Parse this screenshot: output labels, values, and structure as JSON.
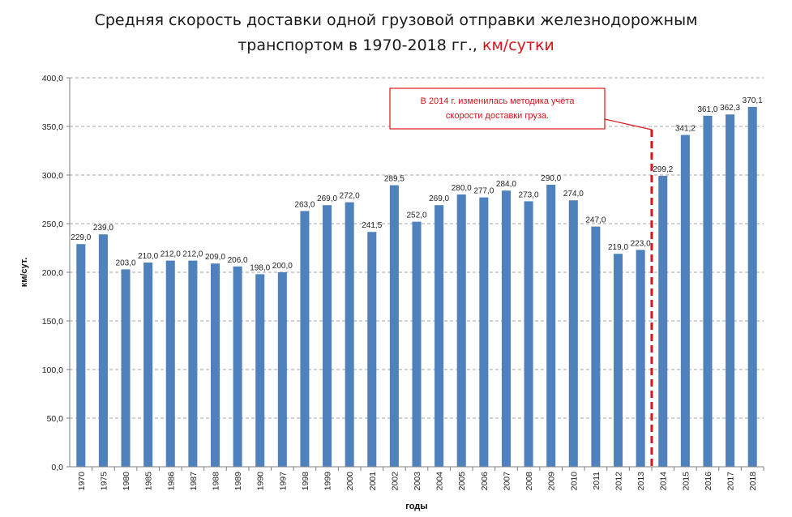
{
  "chart_data": {
    "type": "bar",
    "title_line1": "Средняя скорость доставки одной грузовой отправки железнодорожным",
    "title_line2": "транспортом в 1970-2018 гг.,",
    "title_unit": "км/сутки",
    "xlabel": "годы",
    "ylabel": "км/сут.",
    "ylim": [
      0,
      400
    ],
    "yticks": [
      "0,0",
      "50,0",
      "100,0",
      "150,0",
      "200,0",
      "250,0",
      "300,0",
      "350,0",
      "400,0"
    ],
    "ytick_values": [
      0,
      50,
      100,
      150,
      200,
      250,
      300,
      350,
      400
    ],
    "grid": true,
    "bar_color": "#4f81bd",
    "categories": [
      "1970",
      "1975",
      "1980",
      "1985",
      "1986",
      "1987",
      "1988",
      "1989",
      "1990",
      "1997",
      "1998",
      "1999",
      "2000",
      "2001",
      "2002",
      "2003",
      "2004",
      "2005",
      "2006",
      "2007",
      "2008",
      "2009",
      "2010",
      "2011",
      "2012",
      "2013",
      "2014",
      "2015",
      "2016",
      "2017",
      "2018"
    ],
    "values": [
      229.0,
      239.0,
      203.0,
      210.0,
      212.0,
      212.0,
      209.0,
      206.0,
      198.0,
      200.0,
      263.0,
      269.0,
      272.0,
      241.5,
      289.5,
      252.0,
      269.0,
      280.0,
      277.0,
      284.0,
      273.0,
      290.0,
      274.0,
      247.0,
      219.0,
      223.0,
      299.2,
      341.2,
      361.0,
      362.3,
      370.1
    ],
    "value_labels": [
      "229,0",
      "239,0",
      "203,0",
      "210,0",
      "212,0",
      "212,0",
      "209,0",
      "206,0",
      "198,0",
      "200,0",
      "263,0",
      "269,0",
      "272,0",
      "241,5",
      "289,5",
      "252,0",
      "269,0",
      "280,0",
      "277,0",
      "284,0",
      "273,0",
      "290,0",
      "274,0",
      "247,0",
      "219,0",
      "223,0",
      "299,2",
      "341,2",
      "361,0",
      "362,3",
      "370,1"
    ],
    "annotation": {
      "line1": "В 2014  г. изменилась методика учёта",
      "line2": "скорости доставки груза.",
      "color": "#d9141c",
      "between": [
        "2013",
        "2014"
      ]
    }
  }
}
